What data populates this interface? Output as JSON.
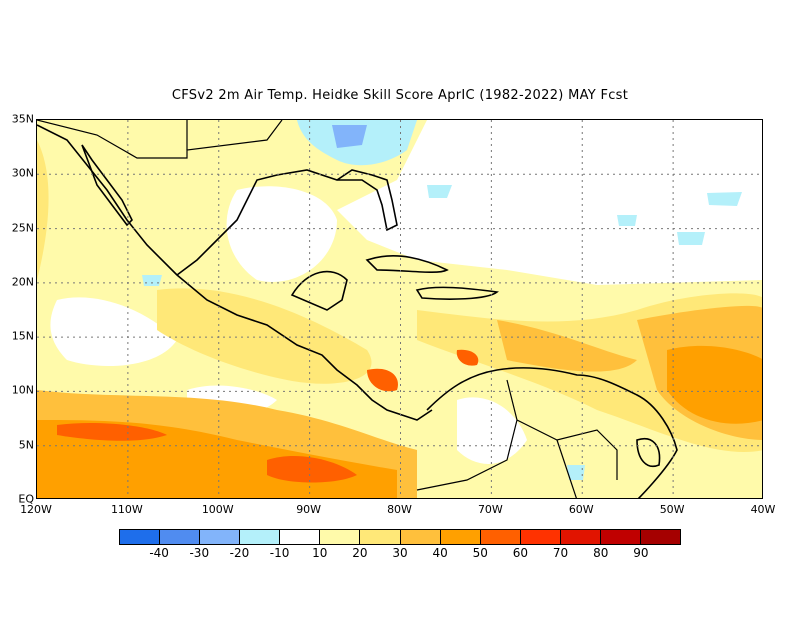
{
  "title": "CFSv2  2m Air Temp. Heidke Skill Score AprIC (1982-2022) MAY Fcst",
  "map": {
    "projection": "equirectangular",
    "lon_range": [
      -120,
      -40
    ],
    "lat_range": [
      0,
      35
    ],
    "grid": "dotted",
    "lat_ticks": [
      {
        "value": 35,
        "label": "35N"
      },
      {
        "value": 30,
        "label": "30N"
      },
      {
        "value": 25,
        "label": "25N"
      },
      {
        "value": 20,
        "label": "20N"
      },
      {
        "value": 15,
        "label": "15N"
      },
      {
        "value": 10,
        "label": "10N"
      },
      {
        "value": 5,
        "label": "5N"
      },
      {
        "value": 0,
        "label": "EQ"
      }
    ],
    "lon_ticks": [
      {
        "value": -120,
        "label": "120W"
      },
      {
        "value": -110,
        "label": "110W"
      },
      {
        "value": -100,
        "label": "100W"
      },
      {
        "value": -90,
        "label": "90W"
      },
      {
        "value": -80,
        "label": "80W"
      },
      {
        "value": -70,
        "label": "70W"
      },
      {
        "value": -60,
        "label": "60W"
      },
      {
        "value": -50,
        "label": "50W"
      },
      {
        "value": -40,
        "label": "40W"
      }
    ]
  },
  "colorbar": {
    "colors": [
      "#1e6eeb",
      "#508cf0",
      "#82b4fa",
      "#b4f0fa",
      "#ffffff",
      "#fffaaa",
      "#ffe878",
      "#ffc03c",
      "#ffa000",
      "#ff6000",
      "#ff3200",
      "#e11400",
      "#c00000",
      "#a50000"
    ],
    "labels": [
      "-40",
      "-30",
      "-20",
      "-10",
      "10",
      "20",
      "30",
      "40",
      "50",
      "60",
      "70",
      "80",
      "90"
    ]
  }
}
